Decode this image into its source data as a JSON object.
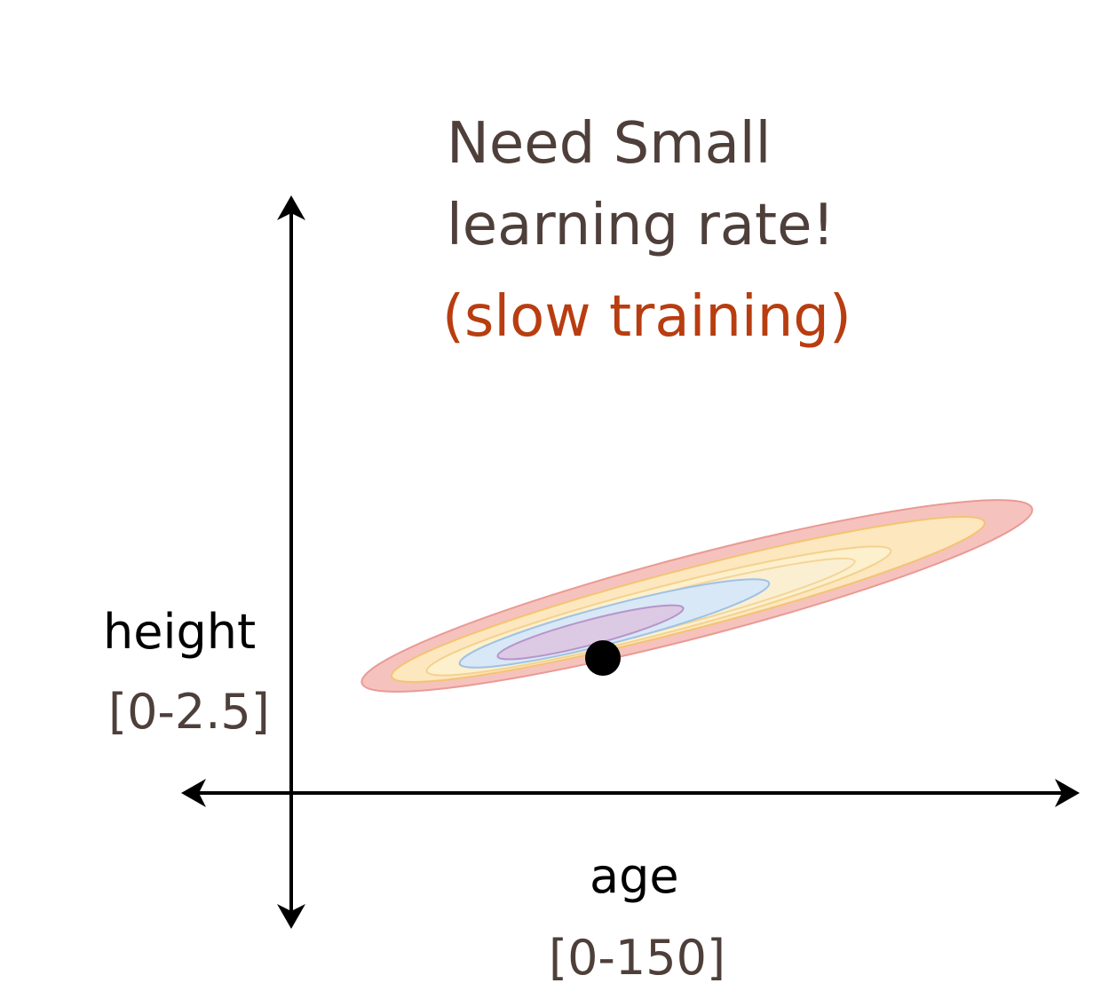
{
  "title": {
    "line1": "Need Small",
    "line2": "learning rate!",
    "note": "(slow training)"
  },
  "axes": {
    "y_label": "height",
    "y_range": "[0-2.5]",
    "x_label": "age",
    "x_range": "[0-150]"
  },
  "contours": {
    "fills": [
      "#f6c2bd",
      "#fde7bf",
      "#fdf0cc",
      "#fbefd2",
      "#d9e8f7",
      "#dcc9e4"
    ],
    "strokes": [
      "#e99a94",
      "#f2c472",
      "#f3d190",
      "#f3d59a",
      "#9ec2e6",
      "#b695c9"
    ]
  },
  "point": {
    "color": "#000000"
  },
  "colors": {
    "title": "#4e3f3a",
    "note": "#b83d10",
    "axis": "#000000"
  }
}
